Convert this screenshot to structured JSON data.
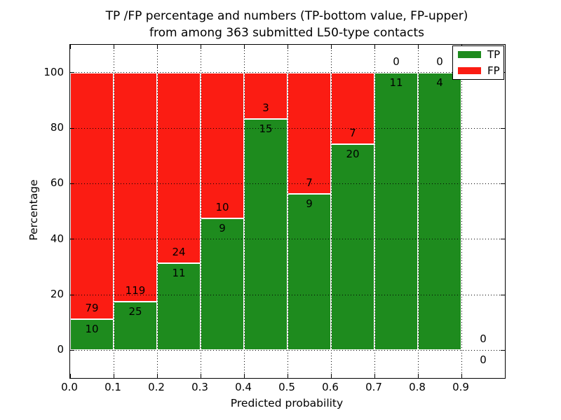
{
  "chart_data": {
    "type": "bar",
    "stacked": true,
    "title_line1": "TP /FP percentage and numbers (TP-bottom value, FP-upper)",
    "title_line2": "from among 363 submitted L50-type contacts",
    "xlabel": "Predicted probability",
    "ylabel": "Percentage",
    "xlim": [
      0.0,
      1.0
    ],
    "ylim": [
      -10,
      110
    ],
    "bin_width": 0.1,
    "x_tick_values": [
      0.0,
      0.1,
      0.2,
      0.3,
      0.4,
      0.5,
      0.6,
      0.7,
      0.8,
      0.9
    ],
    "x_tick_labels": [
      "0.0",
      "0.1",
      "0.2",
      "0.3",
      "0.4",
      "0.5",
      "0.6",
      "0.7",
      "0.8",
      "0.9"
    ],
    "y_tick_values": [
      0,
      20,
      40,
      60,
      80,
      100
    ],
    "y_tick_labels": [
      "0",
      "20",
      "40",
      "60",
      "80",
      "100"
    ],
    "grid": true,
    "legend_position": "upper right",
    "total_submitted": 363,
    "series": [
      {
        "name": "TP",
        "color": "#1e8b1e"
      },
      {
        "name": "FP",
        "color": "#fb1c13"
      }
    ],
    "bins": [
      {
        "range": [
          0.0,
          0.1
        ],
        "tp": 10,
        "fp": 79,
        "tp_pct": 11.2
      },
      {
        "range": [
          0.1,
          0.2
        ],
        "tp": 25,
        "fp": 119,
        "tp_pct": 17.4
      },
      {
        "range": [
          0.2,
          0.3
        ],
        "tp": 11,
        "fp": 24,
        "tp_pct": 31.4
      },
      {
        "range": [
          0.3,
          0.4
        ],
        "tp": 9,
        "fp": 10,
        "tp_pct": 47.4
      },
      {
        "range": [
          0.4,
          0.5
        ],
        "tp": 15,
        "fp": 3,
        "tp_pct": 83.3
      },
      {
        "range": [
          0.5,
          0.6
        ],
        "tp": 9,
        "fp": 7,
        "tp_pct": 56.3
      },
      {
        "range": [
          0.6,
          0.7
        ],
        "tp": 20,
        "fp": 7,
        "tp_pct": 74.1
      },
      {
        "range": [
          0.7,
          0.8
        ],
        "tp": 11,
        "fp": 0,
        "tp_pct": 100
      },
      {
        "range": [
          0.8,
          0.9
        ],
        "tp": 4,
        "fp": 0,
        "tp_pct": 100
      },
      {
        "range": [
          0.9,
          1.0
        ],
        "tp": 0,
        "fp": 0,
        "tp_pct": 0,
        "empty": true
      }
    ]
  }
}
